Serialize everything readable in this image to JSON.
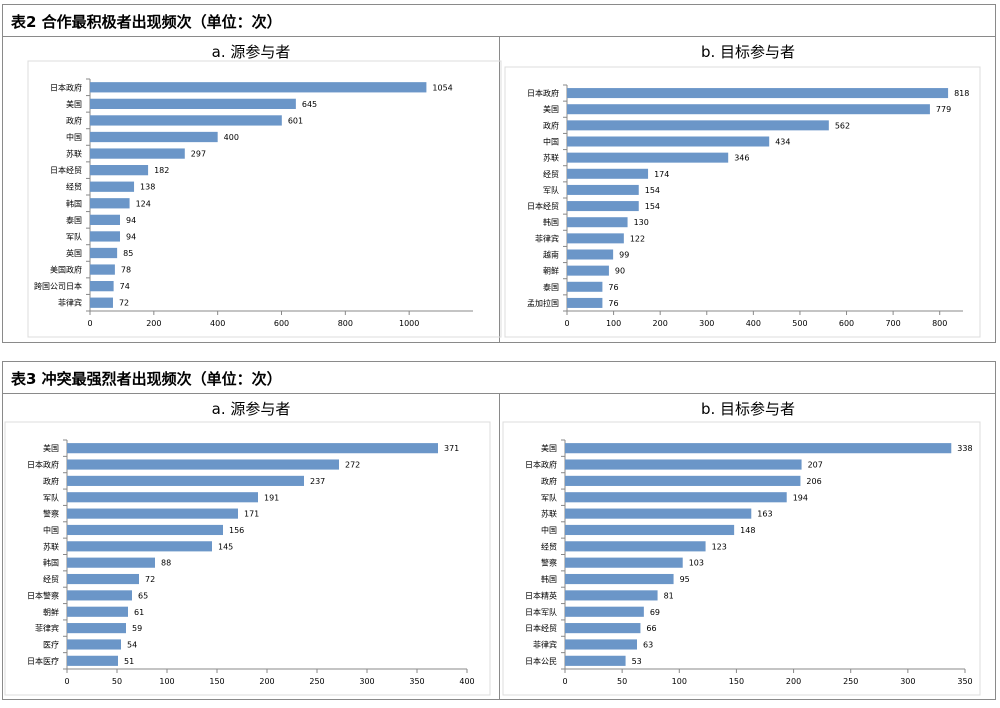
{
  "tables": [
    {
      "title": "表2 合作最积极者出现频次（单位：次）",
      "panels": [
        {
          "title": "a. 源参与者"
        },
        {
          "title": "b. 目标参与者"
        }
      ]
    },
    {
      "title": "表3 冲突最强烈者出现频次（单位：次）",
      "panels": [
        {
          "title": "a. 源参与者"
        },
        {
          "title": "b. 目标参与者"
        }
      ]
    }
  ],
  "chart_data": [
    {
      "type": "bar",
      "orientation": "horizontal",
      "title": "a. 源参与者",
      "categories": [
        "日本政府",
        "美国",
        "政府",
        "中国",
        "苏联",
        "日本经贸",
        "经贸",
        "韩国",
        "泰国",
        "军队",
        "英国",
        "美国政府",
        "跨国公司日本",
        "菲律宾"
      ],
      "values": [
        1054,
        645,
        601,
        400,
        297,
        182,
        138,
        124,
        94,
        94,
        85,
        78,
        74,
        72
      ],
      "xlim": [
        0,
        1200
      ],
      "xticks": [
        0,
        200,
        400,
        600,
        800,
        1000
      ],
      "bar_color": "#6b96c8",
      "data_labels": true,
      "grid": false
    },
    {
      "type": "bar",
      "orientation": "horizontal",
      "title": "b. 目标参与者",
      "categories": [
        "日本政府",
        "美国",
        "政府",
        "中国",
        "苏联",
        "经贸",
        "军队",
        "日本经贸",
        "韩国",
        "菲律宾",
        "越南",
        "朝鲜",
        "泰国",
        "孟加拉国"
      ],
      "values": [
        818,
        779,
        562,
        434,
        346,
        174,
        154,
        154,
        130,
        122,
        99,
        90,
        76,
        76
      ],
      "xlim": [
        0,
        850
      ],
      "xticks": [
        0,
        100,
        200,
        300,
        400,
        500,
        600,
        700,
        800
      ],
      "bar_color": "#6b96c8",
      "data_labels": true,
      "grid": false
    },
    {
      "type": "bar",
      "orientation": "horizontal",
      "title": "a. 源参与者",
      "categories": [
        "美国",
        "日本政府",
        "政府",
        "军队",
        "警察",
        "中国",
        "苏联",
        "韩国",
        "经贸",
        "日本警察",
        "朝鲜",
        "菲律宾",
        "医疗",
        "日本医疗"
      ],
      "values": [
        371,
        272,
        237,
        191,
        171,
        156,
        145,
        88,
        72,
        65,
        61,
        59,
        54,
        51
      ],
      "xlim": [
        0,
        400
      ],
      "xticks": [
        0,
        50,
        100,
        150,
        200,
        250,
        300,
        350,
        400
      ],
      "bar_color": "#6b96c8",
      "data_labels": true,
      "grid": false
    },
    {
      "type": "bar",
      "orientation": "horizontal",
      "title": "b. 目标参与者",
      "categories": [
        "美国",
        "日本政府",
        "政府",
        "军队",
        "苏联",
        "中国",
        "经贸",
        "警察",
        "韩国",
        "日本精英",
        "日本军队",
        "日本经贸",
        "菲律宾",
        "日本公民"
      ],
      "values": [
        338,
        207,
        206,
        194,
        163,
        148,
        123,
        103,
        95,
        81,
        69,
        66,
        63,
        53
      ],
      "xlim": [
        0,
        350
      ],
      "xticks": [
        0,
        50,
        100,
        150,
        200,
        250,
        300,
        350
      ],
      "bar_color": "#6b96c8",
      "data_labels": true,
      "grid": false
    }
  ]
}
